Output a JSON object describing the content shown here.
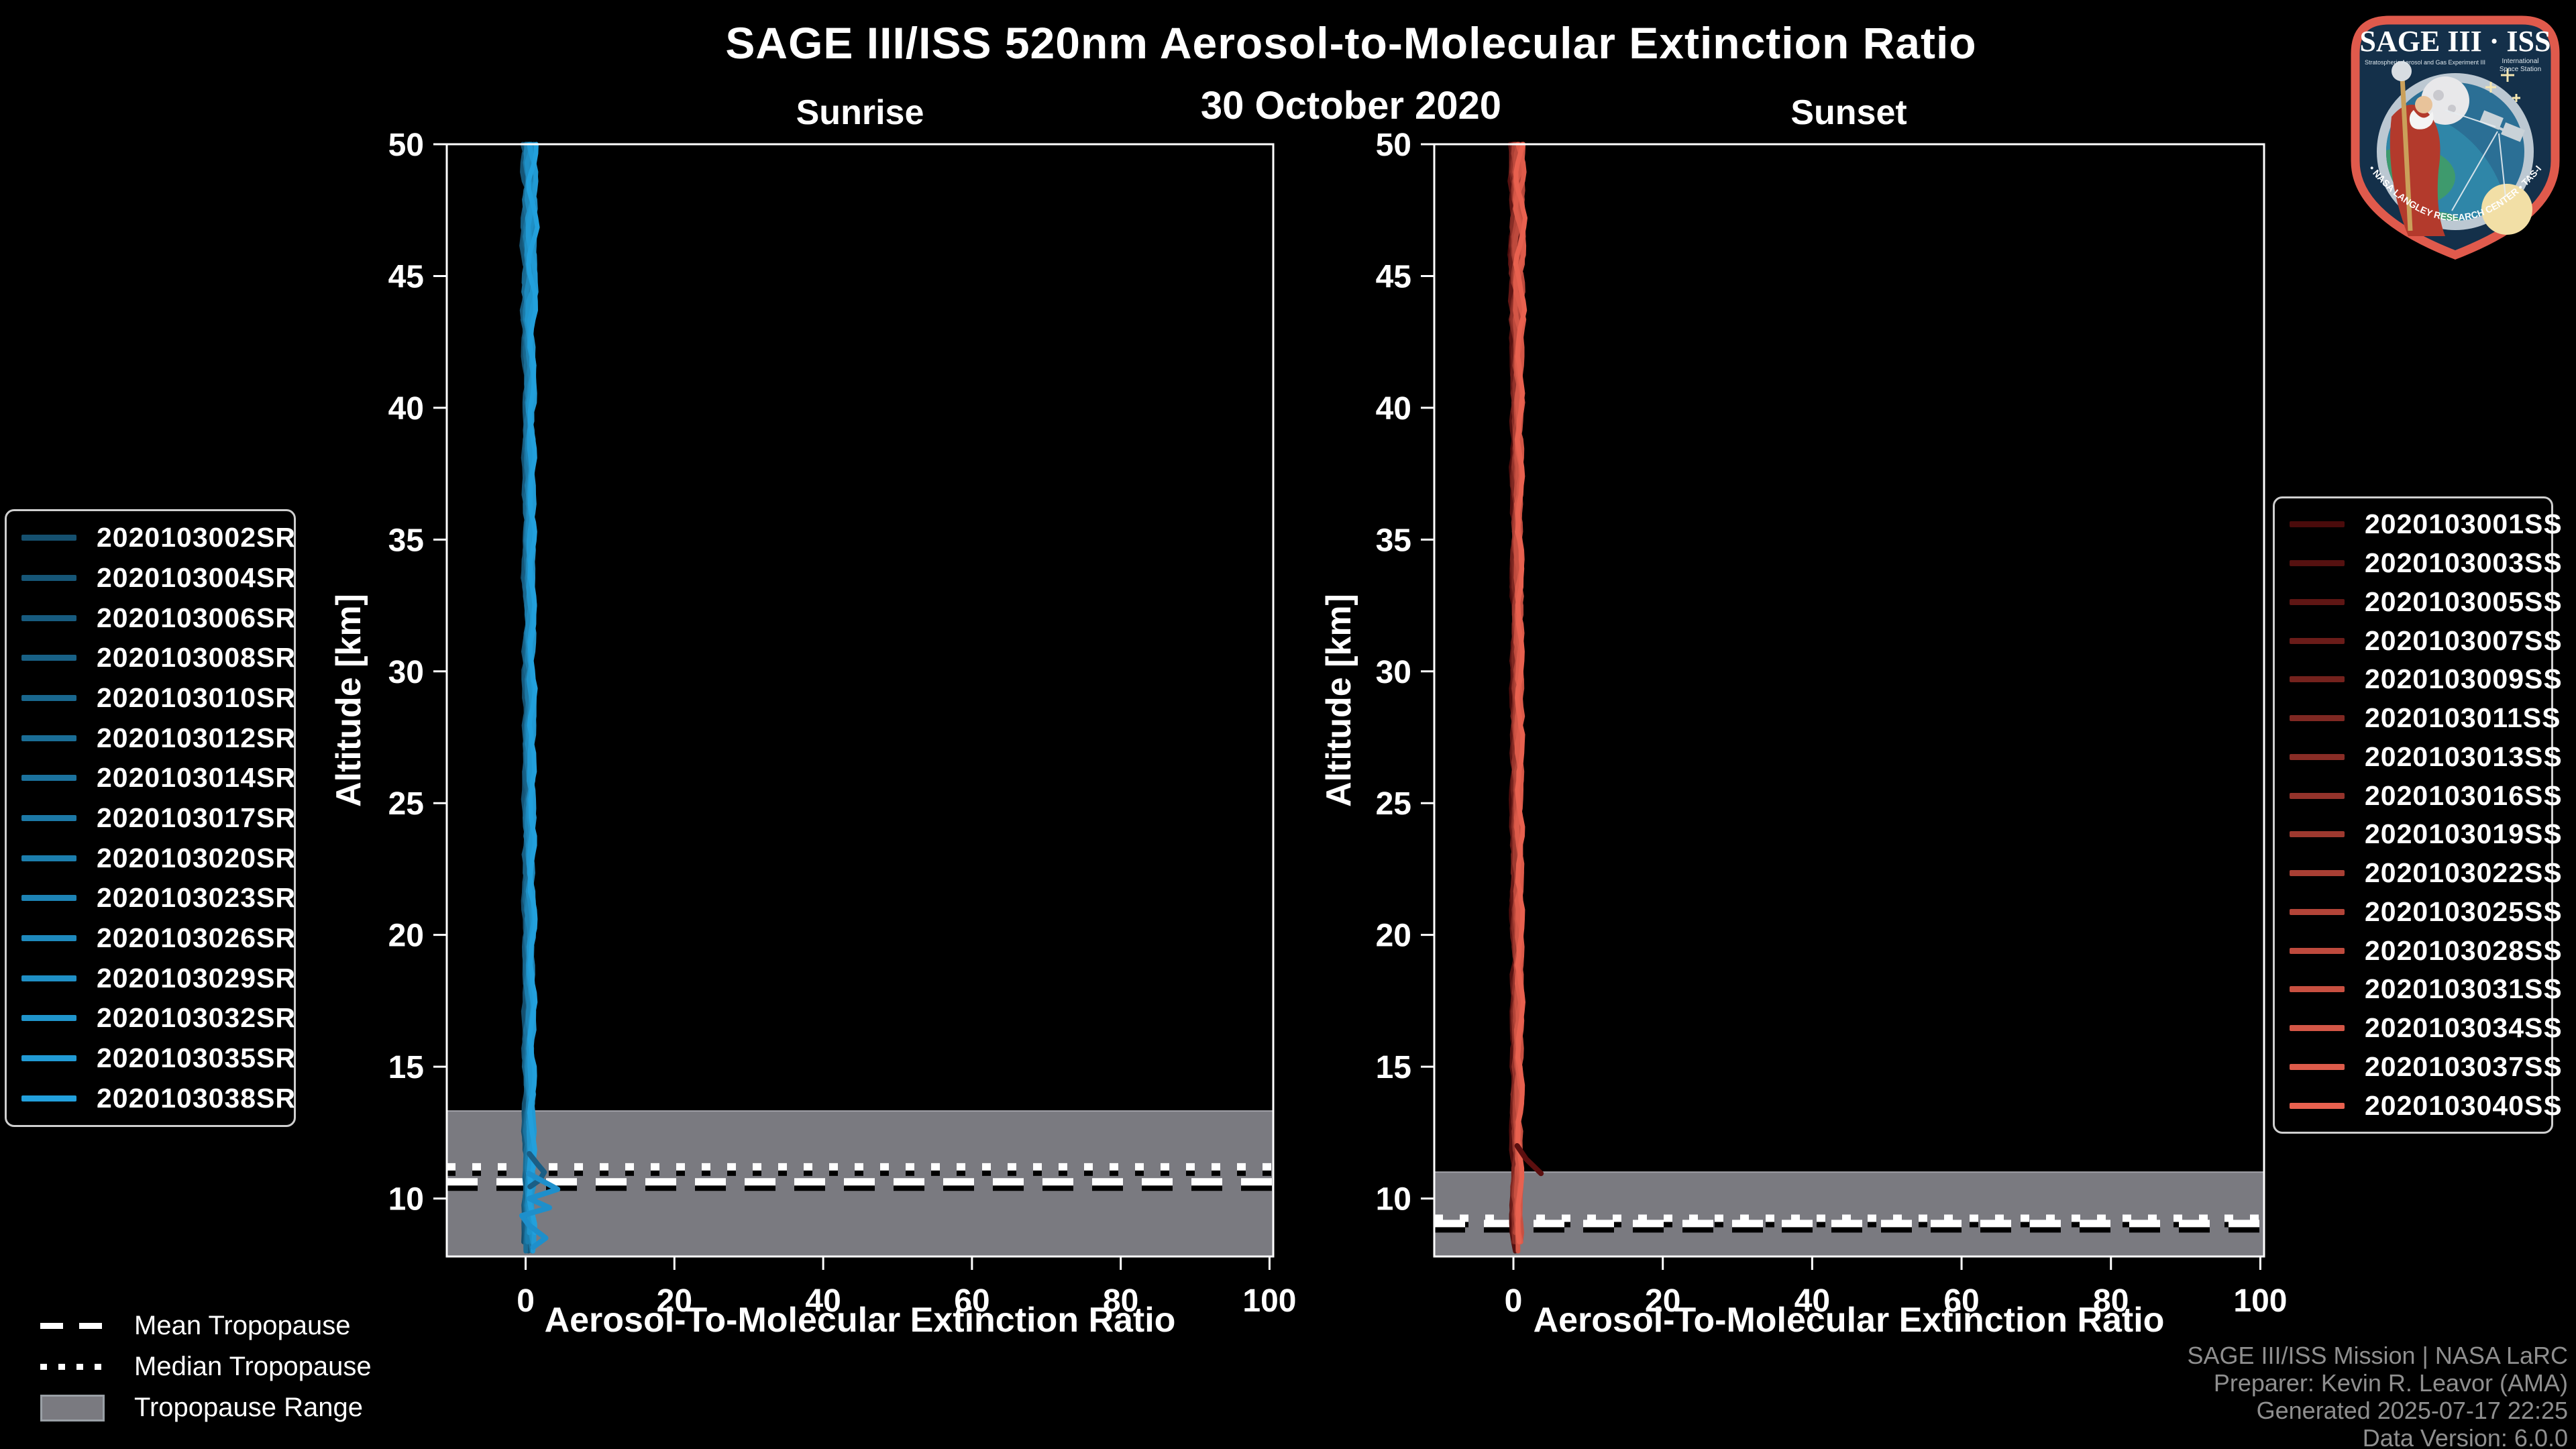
{
  "figure": {
    "title": "SAGE III/ISS 520nm Aerosol-to-Molecular Extinction Ratio",
    "date": "30 October 2020",
    "background_color": "#000000"
  },
  "chart_data": [
    {
      "type": "line",
      "title": "Sunrise",
      "xlabel": "Aerosol-To-Molecular Extinction Ratio",
      "ylabel": "Altitude [km]",
      "xlim": [
        -10.6,
        100.5
      ],
      "ylim": [
        7.8,
        50
      ],
      "x_ticks": [
        0,
        20,
        40,
        60,
        80,
        100
      ],
      "y_ticks": [
        10,
        15,
        20,
        25,
        30,
        35,
        40,
        45,
        50
      ],
      "grid": false,
      "legend_position": "outside-left",
      "series_color_start": "#15506F",
      "series_color_end": "#22A0DC",
      "series": [
        "2020103002SR",
        "2020103004SR",
        "2020103006SR",
        "2020103008SR",
        "2020103010SR",
        "2020103012SR",
        "2020103014SR",
        "2020103017SR",
        "2020103020SR",
        "2020103023SR",
        "2020103026SR",
        "2020103029SR",
        "2020103032SR",
        "2020103035SR",
        "2020103038SR"
      ],
      "base_profile": [
        [
          50,
          0.5
        ],
        [
          47,
          0.55
        ],
        [
          44,
          0.45
        ],
        [
          40,
          0.5
        ],
        [
          35,
          0.45
        ],
        [
          30,
          0.5
        ],
        [
          25,
          0.45
        ],
        [
          20,
          0.5
        ],
        [
          15,
          0.45
        ],
        [
          12,
          0.45
        ],
        [
          10,
          0.4
        ],
        [
          8,
          0.5
        ]
      ],
      "features": [
        {
          "name": "dark-hook-11km",
          "color": "#1A5E85",
          "points": [
            [
              0.5,
              11.7
            ],
            [
              1.6,
              11.3
            ],
            [
              2.5,
              11.0
            ],
            [
              1.9,
              10.7
            ],
            [
              0.6,
              10.45
            ]
          ]
        },
        {
          "name": "bright-zigzag-10km",
          "color": "#1E8FCB",
          "points": [
            [
              0.4,
              10.95
            ],
            [
              4.3,
              10.35
            ],
            [
              0.5,
              10.0
            ],
            [
              3.2,
              9.65
            ],
            [
              -0.5,
              9.35
            ],
            [
              0.4,
              9.0
            ],
            [
              2.7,
              8.5
            ],
            [
              1.0,
              8.15
            ]
          ]
        }
      ],
      "tropopause": {
        "mean_km": 10.63,
        "median_km": 11.2,
        "range_top_km": 13.32,
        "range_bottom_km": 7.8
      }
    },
    {
      "type": "line",
      "title": "Sunset",
      "xlabel": "Aerosol-To-Molecular Extinction Ratio",
      "ylabel": "Altitude [km]",
      "xlim": [
        -10.6,
        100.5
      ],
      "ylim": [
        7.8,
        50
      ],
      "x_ticks": [
        0,
        20,
        40,
        60,
        80,
        100
      ],
      "y_ticks": [
        10,
        15,
        20,
        25,
        30,
        35,
        40,
        45,
        50
      ],
      "grid": false,
      "legend_position": "outside-right",
      "series_color_start": "#4A0B0B",
      "series_color_end": "#E8614F",
      "series": [
        "2020103001SS",
        "2020103003SS",
        "2020103005SS",
        "2020103007SS",
        "2020103009SS",
        "2020103011SS",
        "2020103013SS",
        "2020103016SS",
        "2020103019SS",
        "2020103022SS",
        "2020103025SS",
        "2020103028SS",
        "2020103031SS",
        "2020103034SS",
        "2020103037SS",
        "2020103040SS"
      ],
      "base_profile": [
        [
          50,
          0.5
        ],
        [
          47,
          0.55
        ],
        [
          44,
          0.45
        ],
        [
          40,
          0.5
        ],
        [
          35,
          0.45
        ],
        [
          30,
          0.5
        ],
        [
          25,
          0.45
        ],
        [
          20,
          0.5
        ],
        [
          15,
          0.45
        ],
        [
          12,
          0.45
        ],
        [
          10,
          0.4
        ],
        [
          8.2,
          0.5
        ]
      ],
      "features": [
        {
          "name": "dark-branch-11km",
          "color": "#5C0F0F",
          "points": [
            [
              0.5,
              12.0
            ],
            [
              1.7,
              11.5
            ],
            [
              3.7,
              10.95
            ]
          ]
        }
      ],
      "tropopause": {
        "mean_km": 9.05,
        "median_km": 9.25,
        "range_top_km": 11.0,
        "range_bottom_km": 7.8
      }
    }
  ],
  "tropopause_legend": {
    "mean": "Mean Tropopause",
    "median": "Median Tropopause",
    "range": "Tropopause Range",
    "range_color": "#7a7a80"
  },
  "attribution": {
    "lines": [
      "SAGE III/ISS Mission | NASA LaRC",
      "Preparer: Kevin R. Leavor (AMA)",
      "Generated 2025-07-17 22:25",
      "Data Version: 6.0.0"
    ]
  },
  "logo": {
    "title": "SAGE III · ISS",
    "subtitle_left": "Stratospheric Aerosol and Gas Experiment III",
    "subtitle_right_1": "International",
    "subtitle_right_2": "Space Station",
    "arc_text": "BALL • NASA LANGLEY RESEARCH CENTER • TAS-I • ESA",
    "border_color": "#E05A4C"
  },
  "colors": {
    "axes": "#ffffff",
    "tropopause_band": "#7a7a80",
    "attribution_text": "#8f8f8f"
  }
}
